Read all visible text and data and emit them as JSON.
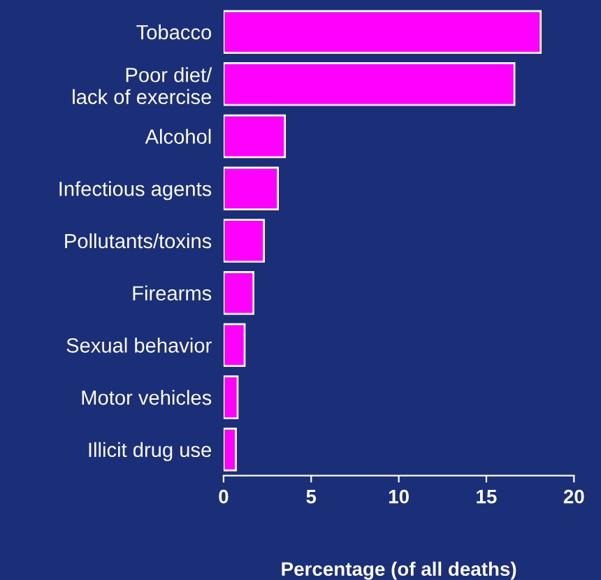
{
  "chart_data": {
    "type": "bar",
    "orientation": "horizontal",
    "categories": [
      "Tobacco",
      "Poor diet/\nlack of exercise",
      "Alcohol",
      "Infectious agents",
      "Pollutants/toxins",
      "Firearms",
      "Sexual behavior",
      "Motor vehicles",
      "Illicit drug use"
    ],
    "values": [
      18.1,
      16.6,
      3.5,
      3.1,
      2.3,
      1.7,
      1.2,
      0.8,
      0.7
    ],
    "color": "#ff00ff",
    "xlabel": "Percentage (of all deaths)",
    "xlim": [
      0,
      20
    ],
    "xticks": [
      0,
      5,
      10,
      15,
      20
    ],
    "grid": false,
    "legend": false
  }
}
